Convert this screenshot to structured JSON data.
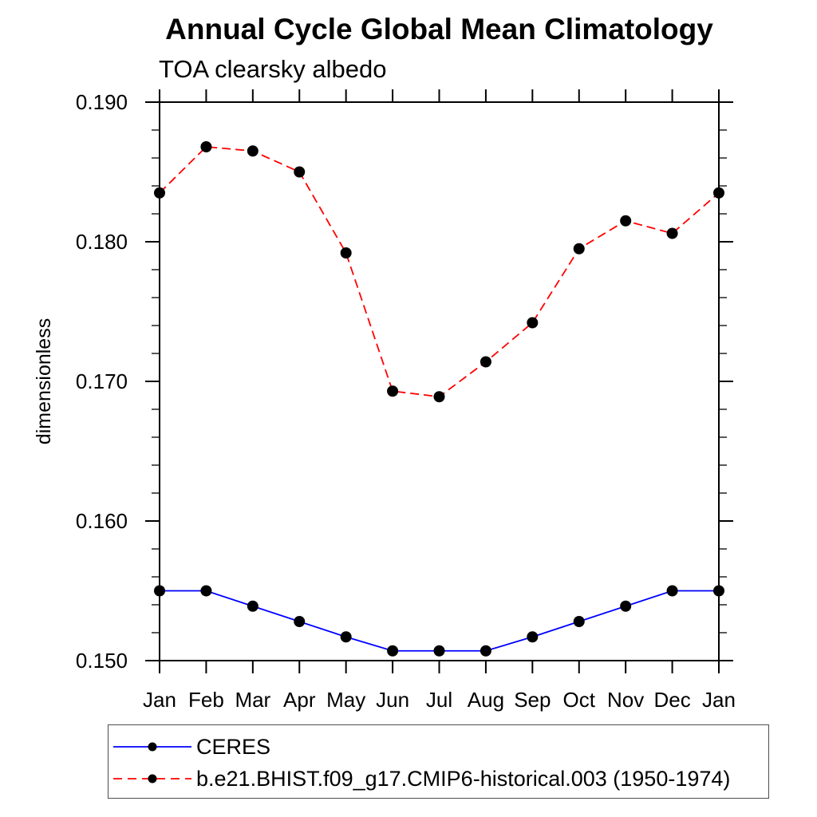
{
  "chart_data": {
    "type": "line",
    "title": "Annual Cycle Global Mean Climatology",
    "subtitle": "TOA clearsky albedo",
    "ylabel": "dimensionless",
    "x_categories": [
      "Jan",
      "Feb",
      "Mar",
      "Apr",
      "May",
      "Jun",
      "Jul",
      "Aug",
      "Sep",
      "Oct",
      "Nov",
      "Dec",
      "Jan"
    ],
    "ylim": [
      0.15,
      0.19
    ],
    "ytick_labels": [
      "0.150",
      "0.160",
      "0.170",
      "0.180",
      "0.190"
    ],
    "ytick_step": 0.01,
    "ytick_minor_step": 0.002,
    "grid": false,
    "legend_position": "bottom-left",
    "axis_color": "#000000",
    "series": [
      {
        "name": "CERES",
        "color": "#0000ff",
        "line_style": "solid",
        "marker": "filled-circle",
        "marker_color": "#000000",
        "values": [
          0.155,
          0.155,
          0.1539,
          0.1528,
          0.1517,
          0.1507,
          0.1507,
          0.1507,
          0.1517,
          0.1528,
          0.1539,
          0.155,
          0.155
        ]
      },
      {
        "name": "b.e21.BHIST.f09_g17.CMIP6-historical.003 (1950-1974)",
        "color": "#ff0000",
        "line_style": "dashed",
        "marker": "filled-circle",
        "marker_color": "#000000",
        "values": [
          0.1835,
          0.1868,
          0.1865,
          0.185,
          0.1792,
          0.1693,
          0.1689,
          0.1714,
          0.1742,
          0.1795,
          0.1815,
          0.1806,
          0.1835
        ]
      }
    ]
  }
}
